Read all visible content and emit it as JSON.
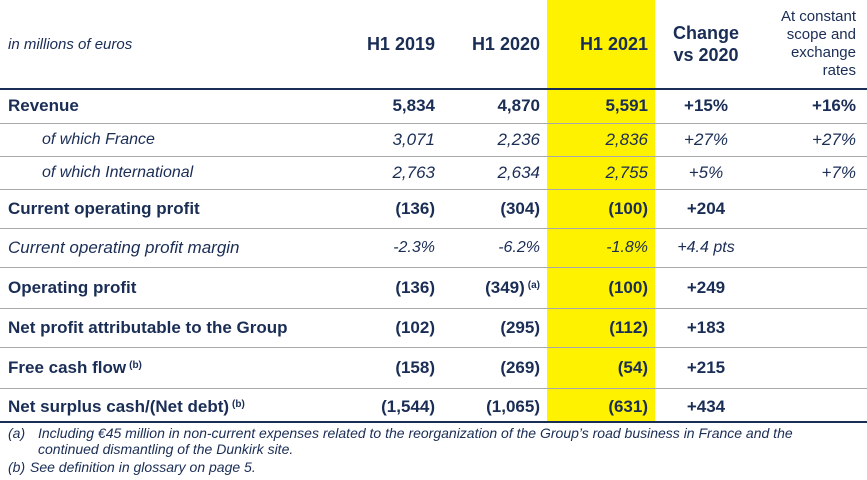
{
  "header": {
    "unit_label": "in millions of euros",
    "col_h1_2019": "H1 2019",
    "col_h1_2020": "H1 2020",
    "col_h1_2021": "H1 2021",
    "col_change_line1": "Change",
    "col_change_line2": "vs 2020",
    "col_constant_line1": "At constant",
    "col_constant_line2": "scope and",
    "col_constant_line3": "exchange",
    "col_constant_line4": "rates"
  },
  "rows": [
    {
      "label": "Revenue",
      "h1_2019": "5,834",
      "h1_2020": "4,870",
      "h1_2020_note": "",
      "h1_2021": "5,591",
      "change": "+15%",
      "constant": "+16%"
    },
    {
      "label": "of which France",
      "h1_2019": "3,071",
      "h1_2020": "2,236",
      "h1_2020_note": "",
      "h1_2021": "2,836",
      "change": "+27%",
      "constant": "+27%"
    },
    {
      "label": "of which International",
      "h1_2019": "2,763",
      "h1_2020": "2,634",
      "h1_2020_note": "",
      "h1_2021": "2,755",
      "change": "+5%",
      "constant": "+7%"
    },
    {
      "label": "Current operating profit",
      "h1_2019": "(136)",
      "h1_2020": "(304)",
      "h1_2020_note": "",
      "h1_2021": "(100)",
      "change": "+204",
      "constant": ""
    },
    {
      "label": "Current operating profit margin",
      "h1_2019": "-2.3%",
      "h1_2020": "-6.2%",
      "h1_2020_note": "",
      "h1_2021": "-1.8%",
      "change": "+4.4 pts",
      "constant": ""
    },
    {
      "label": "Operating profit",
      "h1_2019": "(136)",
      "h1_2020": "(349)",
      "h1_2020_note": "(a)",
      "h1_2021": "(100)",
      "change": "+249",
      "constant": ""
    },
    {
      "label": "Net profit attributable to the Group",
      "h1_2019": "(102)",
      "h1_2020": "(295)",
      "h1_2020_note": "",
      "h1_2021": "(112)",
      "change": "+183",
      "constant": ""
    },
    {
      "label": "Free cash flow",
      "label_note": "(b)",
      "h1_2019": "(158)",
      "h1_2020": "(269)",
      "h1_2020_note": "",
      "h1_2021": "(54)",
      "change": "+215",
      "constant": ""
    },
    {
      "label": "Net surplus cash/(Net debt)",
      "label_note": "(b)",
      "h1_2019": "(1,544)",
      "h1_2020": "(1,065)",
      "h1_2020_note": "",
      "h1_2021": "(631)",
      "change": "+434",
      "constant": ""
    }
  ],
  "footnotes": {
    "a_tag": "(a)",
    "a_text_line1": "Including €45 million in non-current expenses related to the reorganization of the Group’s road business in France and the",
    "a_text_line2": "continued dismantling of the Dunkirk site.",
    "b_tag": "(b)",
    "b_text": "See definition in glossary on page 5."
  },
  "colors": {
    "text": "#1a2d55",
    "highlight": "#fff200",
    "rule": "#a9a9a9"
  }
}
